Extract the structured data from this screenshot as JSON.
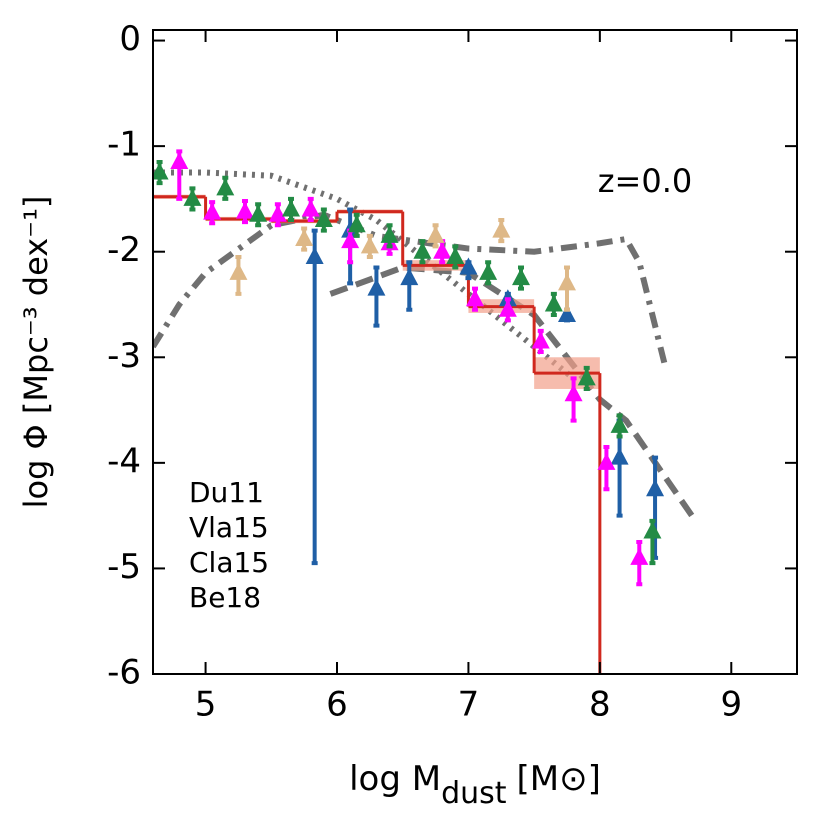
{
  "chart_data": {
    "type": "scatter",
    "annotation": "z=0.0",
    "xlabel": {
      "base": "log M",
      "sub": "dust",
      "unit": "[M⊙]"
    },
    "ylabel": "log Φ [Mpc⁻³ dex⁻¹]",
    "xlim": [
      4.6,
      9.5
    ],
    "ylim": [
      -6,
      0.1
    ],
    "xticks": [
      5,
      6,
      7,
      8,
      9
    ],
    "yticks": [
      0,
      -1,
      -2,
      -3,
      -4,
      -5,
      -6
    ],
    "legend": "lower left",
    "model": {
      "color": "#d0281e",
      "band_color": "#f2a08a",
      "edges": [
        4.6,
        5,
        5.5,
        6,
        6.5,
        7,
        7.5,
        8
      ],
      "values": [
        -1.48,
        -1.69,
        -1.71,
        -1.62,
        -2.13,
        -2.52,
        -3.15
      ],
      "band_low": [
        -1.5,
        -1.71,
        -1.73,
        -1.64,
        -2.18,
        -2.58,
        -3.3
      ],
      "band_high": [
        -1.46,
        -1.67,
        -1.69,
        -1.6,
        -2.08,
        -2.45,
        -3.0
      ]
    },
    "curves": [
      {
        "style": "dotted",
        "color": "#707070",
        "x": [
          4.6,
          5,
          5.5,
          6,
          6.3,
          6.6,
          7,
          7.4,
          7.8
        ],
        "y": [
          -1.25,
          -1.25,
          -1.28,
          -1.5,
          -1.7,
          -2.0,
          -2.4,
          -2.8,
          -3.2
        ]
      },
      {
        "style": "dashdot",
        "color": "#707070",
        "x": [
          4.6,
          4.8,
          5,
          5.5,
          5.9,
          6.3,
          6.7,
          7,
          7.5,
          8,
          8.2,
          8.3,
          8.5
        ],
        "y": [
          -2.9,
          -2.5,
          -2.2,
          -1.75,
          -1.65,
          -1.85,
          -1.92,
          -1.97,
          -2.0,
          -1.92,
          -1.88,
          -2.1,
          -3.1
        ]
      },
      {
        "style": "dashed",
        "color": "#707070",
        "x": [
          5.95,
          6.5,
          7,
          7.5,
          8,
          8.2,
          8.7
        ],
        "y": [
          -2.4,
          -2.15,
          -2.2,
          -2.6,
          -3.4,
          -3.6,
          -4.5
        ]
      }
    ],
    "series": [
      {
        "name": "Du11",
        "color": "#1f5fa6",
        "x": [
          5.83,
          6.1,
          6.3,
          6.55,
          7.0,
          7.3,
          7.75,
          8.15,
          8.42
        ],
        "values": [
          -2.05,
          -1.8,
          -2.35,
          -2.25,
          -2.15,
          -2.45,
          -2.6,
          -3.95,
          -4.25
        ],
        "err_minus": [
          2.9,
          0.5,
          0.35,
          0.3,
          0.1,
          0.1,
          0.05,
          0.55,
          0.65
        ],
        "err_plus": [
          0.25,
          0.2,
          0.2,
          0.15,
          0.05,
          0.05,
          0.05,
          0.35,
          0.3
        ]
      },
      {
        "name": "Vla15",
        "color": "#ff00ff",
        "x": [
          4.8,
          5.05,
          5.3,
          5.55,
          5.8,
          6.1,
          6.4,
          6.8,
          7.05,
          7.3,
          7.55,
          7.8,
          8.05,
          8.3
        ],
        "values": [
          -1.15,
          -1.63,
          -1.62,
          -1.65,
          -1.6,
          -1.9,
          -1.92,
          -2.0,
          -2.45,
          -2.55,
          -2.85,
          -3.35,
          -4.0,
          -4.9
        ],
        "err_minus": [
          0.35,
          0.1,
          0.1,
          0.1,
          0.1,
          0.2,
          0.1,
          0.1,
          0.1,
          0.1,
          0.1,
          0.25,
          0.25,
          0.25
        ],
        "err_plus": [
          0.1,
          0.1,
          0.1,
          0.1,
          0.1,
          0.1,
          0.1,
          0.1,
          0.1,
          0.1,
          0.1,
          0.15,
          0.15,
          0.15
        ]
      },
      {
        "name": "Cla15",
        "color": "#deb887",
        "x": [
          5.25,
          5.75,
          6.25,
          6.75,
          7.25,
          7.75
        ],
        "values": [
          -2.2,
          -1.88,
          -1.95,
          -1.85,
          -1.8,
          -2.3
        ],
        "err_minus": [
          0.2,
          0.1,
          0.1,
          0.1,
          0.1,
          0.25
        ],
        "err_plus": [
          0.15,
          0.1,
          0.1,
          0.1,
          0.1,
          0.15
        ]
      },
      {
        "name": "Be18",
        "color": "#238b45",
        "x": [
          4.65,
          4.9,
          5.15,
          5.4,
          5.65,
          5.9,
          6.15,
          6.4,
          6.65,
          6.9,
          7.15,
          7.4,
          7.65,
          7.9,
          8.15,
          8.4
        ],
        "values": [
          -1.25,
          -1.5,
          -1.4,
          -1.65,
          -1.6,
          -1.7,
          -1.75,
          -1.85,
          -2.0,
          -2.05,
          -2.2,
          -2.25,
          -2.5,
          -3.2,
          -3.65,
          -4.65
        ],
        "err_minus": [
          0.1,
          0.1,
          0.1,
          0.1,
          0.1,
          0.1,
          0.1,
          0.1,
          0.1,
          0.1,
          0.1,
          0.1,
          0.1,
          0.1,
          0.1,
          0.3
        ],
        "err_plus": [
          0.1,
          0.1,
          0.1,
          0.1,
          0.1,
          0.1,
          0.1,
          0.1,
          0.1,
          0.1,
          0.1,
          0.1,
          0.1,
          0.1,
          0.1,
          0.1
        ]
      }
    ]
  }
}
